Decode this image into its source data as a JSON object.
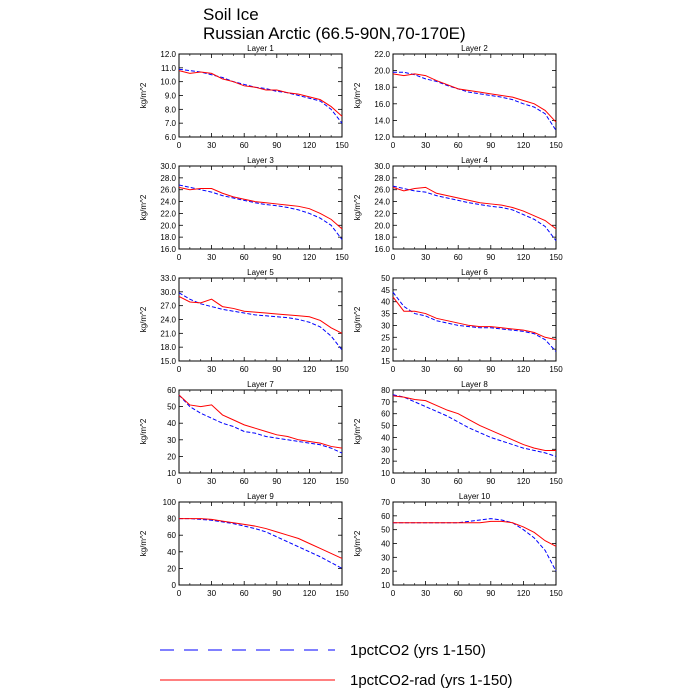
{
  "title": "Soil Ice",
  "subtitle": "Russian Arctic (66.5-90N,70-170E)",
  "legend": [
    {
      "label": "1pctCO2 (yrs 1-150)",
      "color": "#0000ff",
      "style": "dashed"
    },
    {
      "label": "1pctCO2-rad (yrs 1-150)",
      "color": "#ff0000",
      "style": "solid"
    }
  ],
  "chart_data": [
    {
      "type": "line",
      "title": "Layer 1",
      "ylabel": "kg/m^2",
      "xlim": [
        0,
        150
      ],
      "ylim": [
        6.0,
        12.0
      ],
      "xticks": [
        0,
        30,
        60,
        90,
        120,
        150
      ],
      "yticks": [
        6.0,
        7.0,
        8.0,
        9.0,
        10.0,
        11.0,
        12.0
      ],
      "ytick_decimals": 1,
      "x": [
        0,
        10,
        20,
        30,
        40,
        50,
        60,
        70,
        80,
        90,
        100,
        110,
        120,
        130,
        140,
        150
      ],
      "series": [
        {
          "name": "1pctCO2 (yrs 1-150)",
          "values": [
            10.9,
            10.8,
            10.7,
            10.5,
            10.3,
            10.0,
            9.8,
            9.6,
            9.5,
            9.3,
            9.2,
            9.0,
            8.8,
            8.6,
            8.0,
            7.0
          ]
        },
        {
          "name": "1pctCO2-rad (yrs 1-150)",
          "values": [
            10.8,
            10.6,
            10.7,
            10.6,
            10.2,
            10.0,
            9.7,
            9.6,
            9.4,
            9.4,
            9.2,
            9.1,
            8.9,
            8.7,
            8.2,
            7.5
          ]
        }
      ]
    },
    {
      "type": "line",
      "title": "Layer 2",
      "ylabel": "kg/m^2",
      "xlim": [
        0,
        150
      ],
      "ylim": [
        12.0,
        22.0
      ],
      "xticks": [
        0,
        30,
        60,
        90,
        120,
        150
      ],
      "yticks": [
        12.0,
        14.0,
        16.0,
        18.0,
        20.0,
        22.0
      ],
      "ytick_decimals": 1,
      "x": [
        0,
        10,
        20,
        30,
        40,
        50,
        60,
        70,
        80,
        90,
        100,
        110,
        120,
        130,
        140,
        150
      ],
      "series": [
        {
          "name": "1pctCO2 (yrs 1-150)",
          "values": [
            19.8,
            19.8,
            19.5,
            19.0,
            18.7,
            18.2,
            17.8,
            17.4,
            17.2,
            17.0,
            16.8,
            16.5,
            16.0,
            15.6,
            14.8,
            12.8
          ]
        },
        {
          "name": "1pctCO2-rad (yrs 1-150)",
          "values": [
            19.6,
            19.4,
            19.6,
            19.4,
            18.8,
            18.3,
            17.8,
            17.6,
            17.4,
            17.2,
            17.0,
            16.8,
            16.4,
            16.0,
            15.2,
            13.8
          ]
        }
      ]
    },
    {
      "type": "line",
      "title": "Layer 3",
      "ylabel": "kg/m^2",
      "xlim": [
        0,
        150
      ],
      "ylim": [
        16.0,
        30.0
      ],
      "xticks": [
        0,
        30,
        60,
        90,
        120,
        150
      ],
      "yticks": [
        16.0,
        18.0,
        20.0,
        22.0,
        24.0,
        26.0,
        28.0,
        30.0
      ],
      "ytick_decimals": 1,
      "x": [
        0,
        10,
        20,
        30,
        40,
        50,
        60,
        70,
        80,
        90,
        100,
        110,
        120,
        130,
        140,
        150
      ],
      "series": [
        {
          "name": "1pctCO2 (yrs 1-150)",
          "values": [
            26.8,
            26.4,
            26.0,
            25.6,
            25.0,
            24.6,
            24.2,
            23.8,
            23.5,
            23.3,
            23.0,
            22.6,
            22.0,
            21.2,
            20.0,
            17.6
          ]
        },
        {
          "name": "1pctCO2-rad (yrs 1-150)",
          "values": [
            26.4,
            26.0,
            26.2,
            26.2,
            25.4,
            24.8,
            24.4,
            24.0,
            23.8,
            23.6,
            23.4,
            23.2,
            22.8,
            22.0,
            21.0,
            19.4
          ]
        }
      ]
    },
    {
      "type": "line",
      "title": "Layer 4",
      "ylabel": "kg/m^2",
      "xlim": [
        0,
        150
      ],
      "ylim": [
        16.0,
        30.0
      ],
      "xticks": [
        0,
        30,
        60,
        90,
        120,
        150
      ],
      "yticks": [
        16.0,
        18.0,
        20.0,
        22.0,
        24.0,
        26.0,
        28.0,
        30.0
      ],
      "ytick_decimals": 1,
      "x": [
        0,
        10,
        20,
        30,
        40,
        50,
        60,
        70,
        80,
        90,
        100,
        110,
        120,
        130,
        140,
        150
      ],
      "series": [
        {
          "name": "1pctCO2 (yrs 1-150)",
          "values": [
            26.6,
            26.2,
            25.8,
            25.6,
            25.0,
            24.6,
            24.2,
            23.8,
            23.5,
            23.2,
            23.0,
            22.6,
            21.8,
            21.0,
            19.8,
            17.4
          ]
        },
        {
          "name": "1pctCO2-rad (yrs 1-150)",
          "values": [
            26.4,
            25.8,
            26.2,
            26.4,
            25.4,
            25.0,
            24.6,
            24.2,
            23.8,
            23.6,
            23.4,
            23.0,
            22.4,
            21.6,
            20.8,
            19.4
          ]
        }
      ]
    },
    {
      "type": "line",
      "title": "Layer 5",
      "ylabel": "kg/m^2",
      "xlim": [
        0,
        150
      ],
      "ylim": [
        15.0,
        33.0
      ],
      "xticks": [
        0,
        30,
        60,
        90,
        120,
        150
      ],
      "yticks": [
        15.0,
        18.0,
        21.0,
        24.0,
        27.0,
        30.0,
        33.0
      ],
      "ytick_decimals": 1,
      "x": [
        0,
        10,
        20,
        30,
        40,
        50,
        60,
        70,
        80,
        90,
        100,
        110,
        120,
        130,
        140,
        150
      ],
      "series": [
        {
          "name": "1pctCO2 (yrs 1-150)",
          "values": [
            29.8,
            28.4,
            27.4,
            26.8,
            26.2,
            25.8,
            25.4,
            25.0,
            24.8,
            24.6,
            24.4,
            24.0,
            23.4,
            22.4,
            20.4,
            17.4
          ]
        },
        {
          "name": "1pctCO2-rad (yrs 1-150)",
          "values": [
            29.0,
            27.8,
            27.6,
            28.4,
            26.8,
            26.4,
            25.8,
            25.6,
            25.4,
            25.2,
            25.0,
            24.8,
            24.6,
            23.8,
            22.2,
            21.0
          ]
        }
      ]
    },
    {
      "type": "line",
      "title": "Layer 6",
      "ylabel": "kg/m^2",
      "xlim": [
        0,
        150
      ],
      "ylim": [
        15,
        50
      ],
      "xticks": [
        0,
        30,
        60,
        90,
        120,
        150
      ],
      "yticks": [
        15,
        20,
        25,
        30,
        35,
        40,
        45,
        50
      ],
      "ytick_decimals": 0,
      "x": [
        0,
        10,
        20,
        30,
        40,
        50,
        60,
        70,
        80,
        90,
        100,
        110,
        120,
        130,
        140,
        150
      ],
      "series": [
        {
          "name": "1pctCO2 (yrs 1-150)",
          "values": [
            44,
            38,
            35,
            34,
            32,
            31,
            30,
            29.5,
            29,
            29,
            28.5,
            28,
            27.5,
            26.5,
            24,
            19
          ]
        },
        {
          "name": "1pctCO2-rad (yrs 1-150)",
          "values": [
            42,
            36,
            36,
            35,
            33,
            32,
            31,
            30,
            29.5,
            29.5,
            29,
            28.5,
            28,
            27,
            25,
            24
          ]
        }
      ]
    },
    {
      "type": "line",
      "title": "Layer 7",
      "ylabel": "kg/m^2",
      "xlim": [
        0,
        150
      ],
      "ylim": [
        10,
        60
      ],
      "xticks": [
        0,
        30,
        60,
        90,
        120,
        150
      ],
      "yticks": [
        10,
        20,
        30,
        40,
        50,
        60
      ],
      "ytick_decimals": 0,
      "x": [
        0,
        10,
        20,
        30,
        40,
        50,
        60,
        70,
        80,
        90,
        100,
        110,
        120,
        130,
        140,
        150
      ],
      "series": [
        {
          "name": "1pctCO2 (yrs 1-150)",
          "values": [
            57,
            50,
            46,
            43,
            40,
            38,
            35,
            34,
            32,
            31,
            30,
            29,
            28,
            27,
            25,
            22
          ]
        },
        {
          "name": "1pctCO2-rad (yrs 1-150)",
          "values": [
            57,
            51,
            50,
            51,
            45,
            42,
            39,
            37,
            35,
            33,
            32,
            30,
            29,
            28,
            26,
            25
          ]
        }
      ]
    },
    {
      "type": "line",
      "title": "Layer 8",
      "ylabel": "kg/m^2",
      "xlim": [
        0,
        150
      ],
      "ylim": [
        10,
        80
      ],
      "xticks": [
        0,
        30,
        60,
        90,
        120,
        150
      ],
      "yticks": [
        10,
        20,
        30,
        40,
        50,
        60,
        70,
        80
      ],
      "ytick_decimals": 0,
      "x": [
        0,
        10,
        20,
        30,
        40,
        50,
        60,
        70,
        80,
        90,
        100,
        110,
        120,
        130,
        140,
        150
      ],
      "series": [
        {
          "name": "1pctCO2 (yrs 1-150)",
          "values": [
            76,
            74,
            70,
            66,
            62,
            58,
            53,
            48,
            44,
            40,
            37,
            34,
            31,
            29,
            27,
            24
          ]
        },
        {
          "name": "1pctCO2-rad (yrs 1-150)",
          "values": [
            75,
            74,
            72,
            71,
            67,
            63,
            60,
            55,
            50,
            46,
            42,
            38,
            34,
            31,
            29,
            29
          ]
        }
      ]
    },
    {
      "type": "line",
      "title": "Layer 9",
      "ylabel": "kg/m^2",
      "xlim": [
        0,
        150
      ],
      "ylim": [
        0,
        100
      ],
      "xticks": [
        0,
        30,
        60,
        90,
        120,
        150
      ],
      "yticks": [
        0,
        20,
        40,
        60,
        80,
        100
      ],
      "ytick_decimals": 0,
      "x": [
        0,
        10,
        20,
        30,
        40,
        50,
        60,
        70,
        80,
        90,
        100,
        110,
        120,
        130,
        140,
        150
      ],
      "series": [
        {
          "name": "1pctCO2 (yrs 1-150)",
          "values": [
            80,
            80,
            79,
            78,
            76,
            74,
            71,
            68,
            64,
            58,
            52,
            46,
            40,
            34,
            27,
            20
          ]
        },
        {
          "name": "1pctCO2-rad (yrs 1-150)",
          "values": [
            80,
            80,
            80,
            79,
            77,
            75,
            73,
            71,
            68,
            64,
            60,
            56,
            50,
            44,
            38,
            32
          ]
        }
      ]
    },
    {
      "type": "line",
      "title": "Layer 10",
      "ylabel": "kg/m^2",
      "xlim": [
        0,
        150
      ],
      "ylim": [
        10,
        70
      ],
      "xticks": [
        0,
        30,
        60,
        90,
        120,
        150
      ],
      "yticks": [
        10,
        20,
        30,
        40,
        50,
        60,
        70
      ],
      "ytick_decimals": 0,
      "x": [
        0,
        10,
        20,
        30,
        40,
        50,
        60,
        70,
        80,
        90,
        100,
        110,
        120,
        130,
        140,
        150
      ],
      "series": [
        {
          "name": "1pctCO2 (yrs 1-150)",
          "values": [
            55,
            55,
            55,
            55,
            55,
            55,
            55,
            56,
            57,
            58,
            57,
            55,
            50,
            44,
            35,
            20
          ]
        },
        {
          "name": "1pctCO2-rad (yrs 1-150)",
          "values": [
            55,
            55,
            55,
            55,
            55,
            55,
            55,
            55,
            55,
            56,
            56,
            55,
            52,
            48,
            42,
            38
          ]
        }
      ]
    }
  ]
}
